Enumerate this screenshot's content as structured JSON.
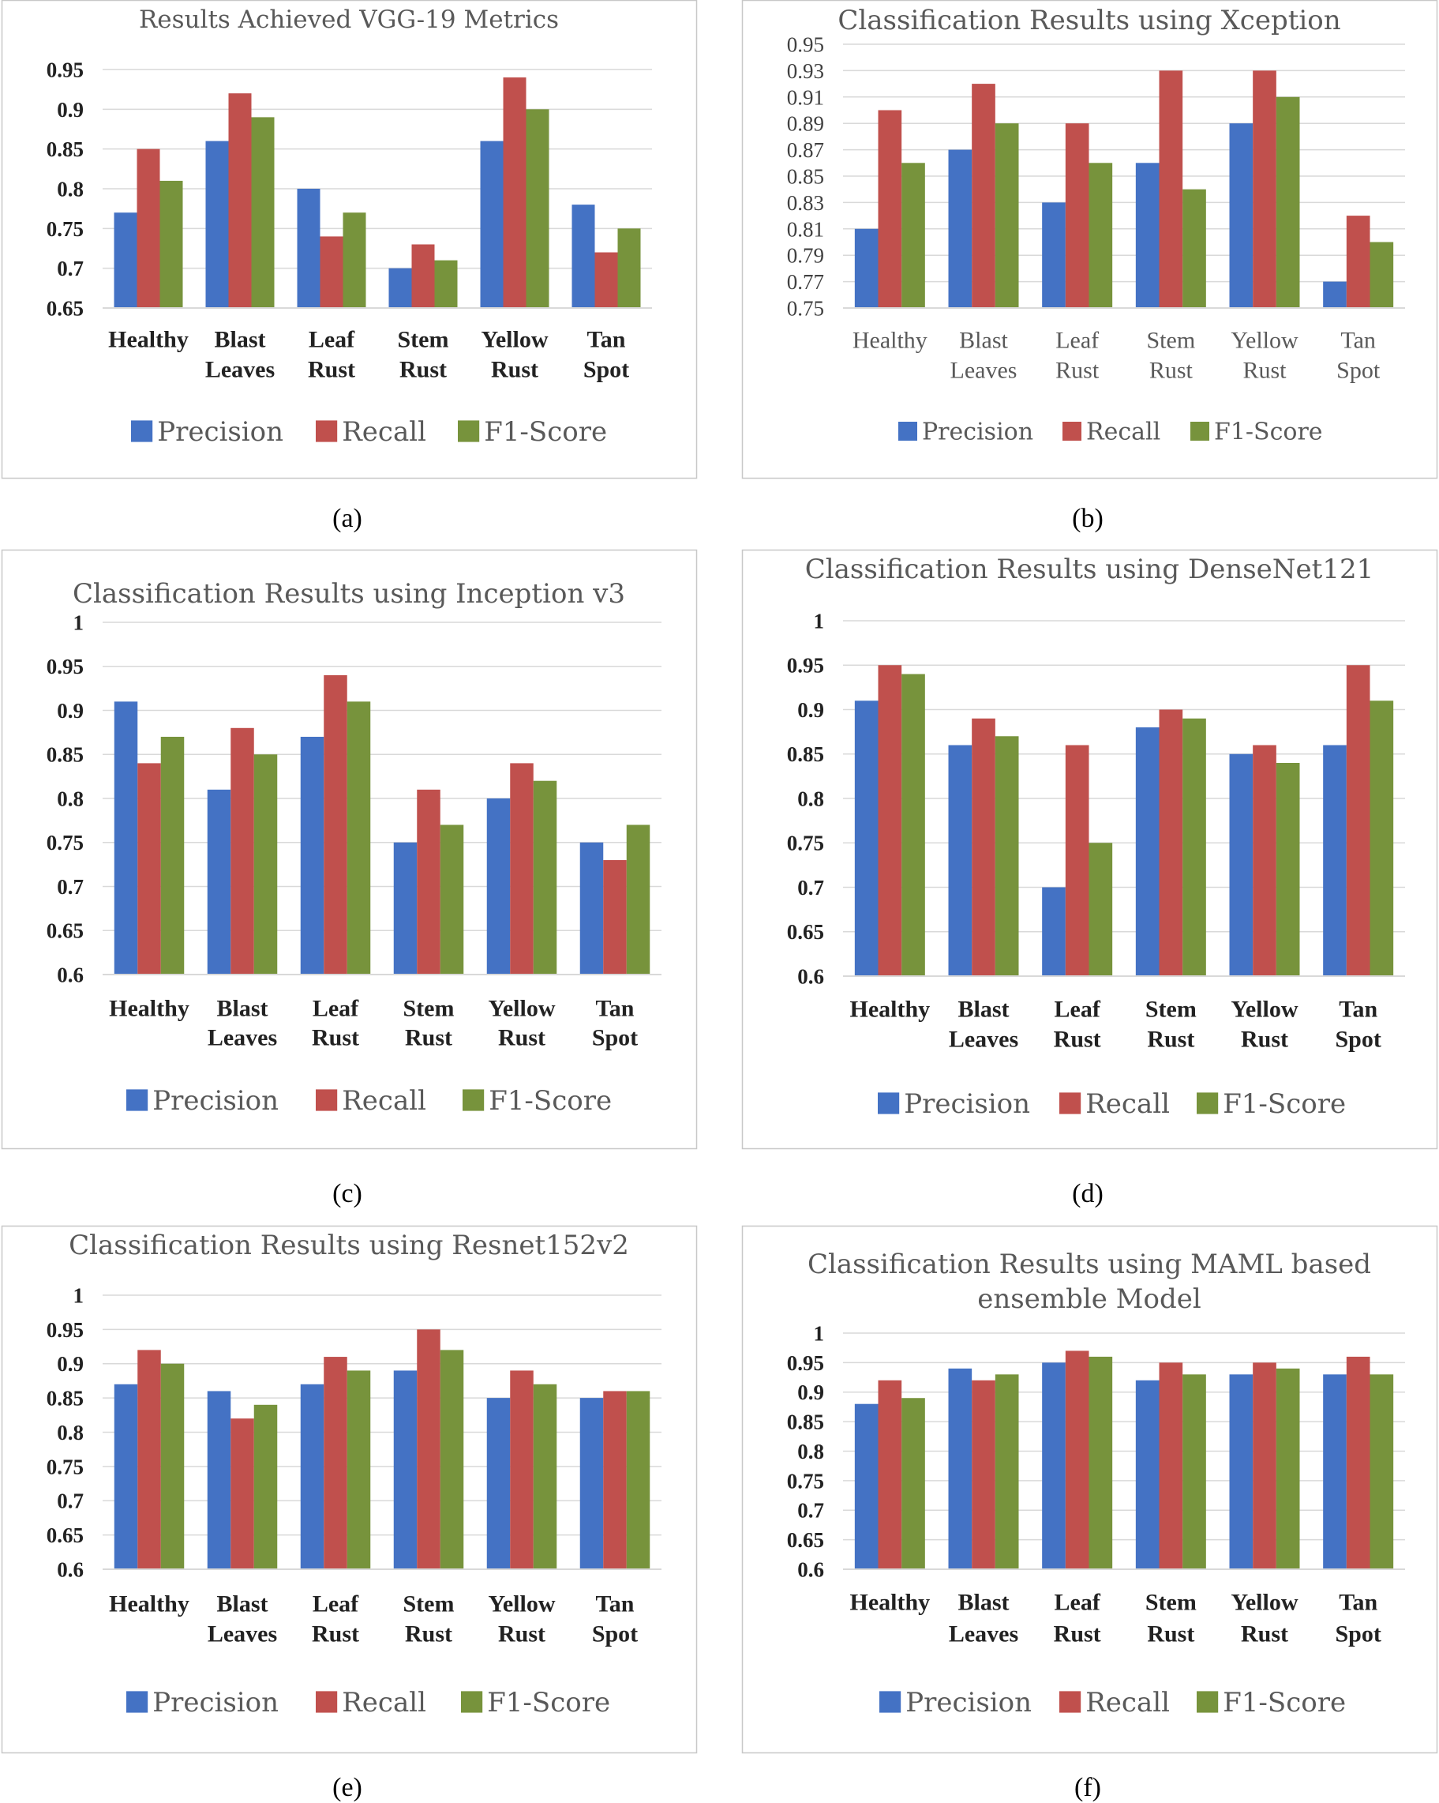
{
  "colors": {
    "precision": "#4472C4",
    "recall": "#C0504D",
    "f1": "#77933C",
    "grid": "#D9D9D9",
    "frame": "#C8C8C8"
  },
  "chart_data": [
    {
      "type": "bar",
      "caption": "(a)",
      "title": "Results Achieved VGG-19 Metrics",
      "categories": [
        "Healthy",
        "Blast Leaves",
        "Leaf Rust",
        "Stem Rust",
        "Yellow Rust",
        "Tan Spot"
      ],
      "series": [
        {
          "name": "Precision",
          "values": [
            0.77,
            0.86,
            0.8,
            0.7,
            0.86,
            0.78
          ]
        },
        {
          "name": "Recall",
          "values": [
            0.85,
            0.92,
            0.74,
            0.73,
            0.94,
            0.72
          ]
        },
        {
          "name": "F1-Score",
          "values": [
            0.81,
            0.89,
            0.77,
            0.71,
            0.9,
            0.75
          ]
        }
      ],
      "ylim": [
        0.65,
        0.95
      ],
      "yticks": [
        "0.95",
        "0.9",
        "0.85",
        "0.8",
        "0.75",
        "0.7",
        "0.65"
      ],
      "grid": true,
      "legend": "bottom"
    },
    {
      "type": "bar",
      "caption": "(b)",
      "title": "Classification Results using Xception",
      "categories": [
        "Healthy",
        "Blast Leaves",
        "Leaf Rust",
        "Stem Rust",
        "Yellow Rust",
        "Tan Spot"
      ],
      "series": [
        {
          "name": "Precision",
          "values": [
            0.81,
            0.87,
            0.83,
            0.86,
            0.89,
            0.77
          ]
        },
        {
          "name": "Recall",
          "values": [
            0.9,
            0.92,
            0.89,
            0.93,
            0.93,
            0.82
          ]
        },
        {
          "name": "F1-Score",
          "values": [
            0.86,
            0.89,
            0.86,
            0.84,
            0.91,
            0.8
          ]
        }
      ],
      "ylim": [
        0.75,
        0.95
      ],
      "yticks": [
        "0.95",
        "0.93",
        "0.91",
        "0.89",
        "0.87",
        "0.85",
        "0.83",
        "0.81",
        "0.79",
        "0.77",
        "0.75"
      ],
      "grid": true,
      "legend": "bottom"
    },
    {
      "type": "bar",
      "caption": "(c)",
      "title": "Classification Results using Inception v3",
      "categories": [
        "Healthy",
        "Blast Leaves",
        "Leaf Rust",
        "Stem Rust",
        "Yellow Rust",
        "Tan Spot"
      ],
      "series": [
        {
          "name": "Precision",
          "values": [
            0.91,
            0.81,
            0.87,
            0.75,
            0.8,
            0.75
          ]
        },
        {
          "name": "Recall",
          "values": [
            0.84,
            0.88,
            0.94,
            0.81,
            0.84,
            0.73
          ]
        },
        {
          "name": "F1-Score",
          "values": [
            0.87,
            0.85,
            0.91,
            0.77,
            0.82,
            0.77
          ]
        }
      ],
      "ylim": [
        0.6,
        1.0
      ],
      "yticks": [
        "1",
        "0.95",
        "0.9",
        "0.85",
        "0.8",
        "0.75",
        "0.7",
        "0.65",
        "0.6"
      ],
      "grid": true,
      "legend": "bottom"
    },
    {
      "type": "bar",
      "caption": "(d)",
      "title": "Classification Results using DenseNet121",
      "categories": [
        "Healthy",
        "Blast Leaves",
        "Leaf Rust",
        "Stem Rust",
        "Yellow Rust",
        "Tan Spot"
      ],
      "series": [
        {
          "name": "Precision",
          "values": [
            0.91,
            0.86,
            0.7,
            0.88,
            0.85,
            0.86
          ]
        },
        {
          "name": "Recall",
          "values": [
            0.95,
            0.89,
            0.86,
            0.9,
            0.86,
            0.95
          ]
        },
        {
          "name": "F1-Score",
          "values": [
            0.94,
            0.87,
            0.75,
            0.89,
            0.84,
            0.91
          ]
        }
      ],
      "ylim": [
        0.6,
        1.0
      ],
      "yticks": [
        "1",
        "0.95",
        "0.9",
        "0.85",
        "0.8",
        "0.75",
        "0.7",
        "0.65",
        "0.6"
      ],
      "grid": true,
      "legend": "bottom"
    },
    {
      "type": "bar",
      "caption": "(e)",
      "title": "Classification Results using Resnet152v2",
      "categories": [
        "Healthy",
        "Blast Leaves",
        "Leaf Rust",
        "Stem Rust",
        "Yellow Rust",
        "Tan Spot"
      ],
      "series": [
        {
          "name": "Precision",
          "values": [
            0.87,
            0.86,
            0.87,
            0.89,
            0.85,
            0.85
          ]
        },
        {
          "name": "Recall",
          "values": [
            0.92,
            0.82,
            0.91,
            0.95,
            0.89,
            0.86
          ]
        },
        {
          "name": "F1-Score",
          "values": [
            0.9,
            0.84,
            0.89,
            0.92,
            0.87,
            0.86
          ]
        }
      ],
      "ylim": [
        0.6,
        1.0
      ],
      "yticks": [
        "1",
        "0.95",
        "0.9",
        "0.85",
        "0.8",
        "0.75",
        "0.7",
        "0.65",
        "0.6"
      ],
      "grid": true,
      "legend": "bottom"
    },
    {
      "type": "bar",
      "caption": "(f)",
      "title": [
        "Classification Results using MAML based",
        "ensemble Model"
      ],
      "categories": [
        "Healthy",
        "Blast Leaves",
        "Leaf Rust",
        "Stem Rust",
        "Yellow Rust",
        "Tan Spot"
      ],
      "series": [
        {
          "name": "Precision",
          "values": [
            0.88,
            0.94,
            0.95,
            0.92,
            0.93,
            0.93
          ]
        },
        {
          "name": "Recall",
          "values": [
            0.92,
            0.92,
            0.97,
            0.95,
            0.95,
            0.96
          ]
        },
        {
          "name": "F1-Score",
          "values": [
            0.89,
            0.93,
            0.96,
            0.93,
            0.94,
            0.93
          ]
        }
      ],
      "ylim": [
        0.6,
        1.0
      ],
      "yticks": [
        "1",
        "0.95",
        "0.9",
        "0.85",
        "0.8",
        "0.75",
        "0.7",
        "0.65",
        "0.6"
      ],
      "grid": true,
      "legend": "bottom"
    }
  ]
}
